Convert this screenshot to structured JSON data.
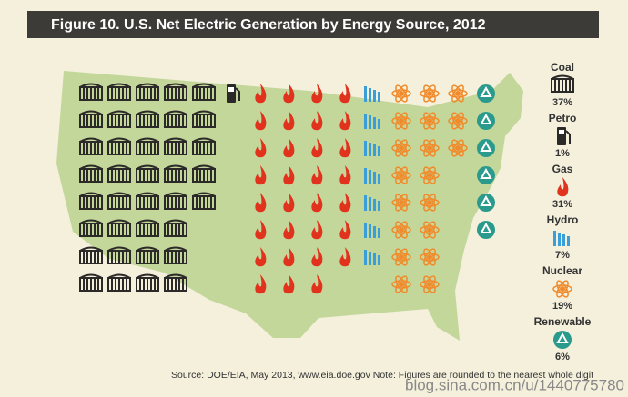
{
  "chart_data": {
    "type": "pictogram",
    "title": "Figure 10. U.S. Net Electric Generation by Energy Source, 2012",
    "categories": [
      "Coal",
      "Petro",
      "Gas",
      "Hydro",
      "Nuclear",
      "Renewable"
    ],
    "values": [
      37,
      1,
      31,
      7,
      19,
      6
    ],
    "value_labels": [
      "37%",
      "1%",
      "31%",
      "7%",
      "19%",
      "6%"
    ],
    "colors": [
      "#2b2a28",
      "#2b2a28",
      "#e0321c",
      "#3a9fd8",
      "#f08a2a",
      "#2a9a8c"
    ],
    "source": "Source: DOE/EIA, May 2013, www.eia.doe.gov  Note: Figures are rounded to the nearest whole digit",
    "watermark": "blog.sina.com.cn/u/1440775780"
  }
}
